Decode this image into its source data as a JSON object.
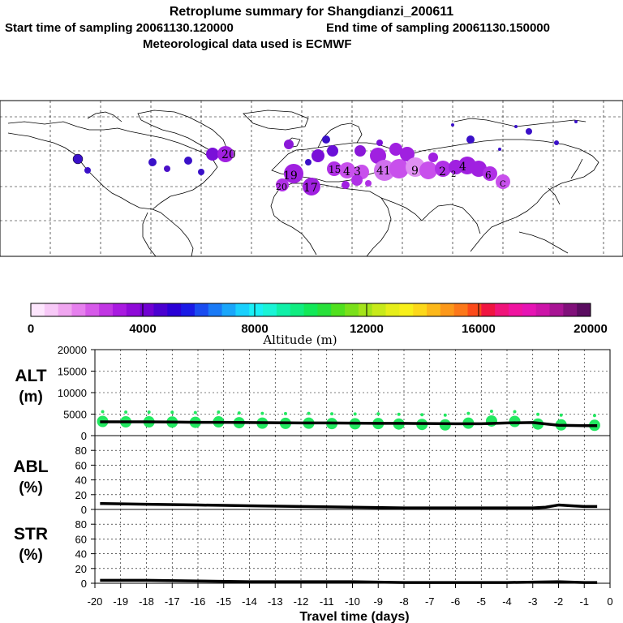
{
  "header": {
    "title": "Retroplume summary for Shangdianzi_200611",
    "start_label": "Start time of sampling 20061130.120000",
    "end_label": "End time of sampling 20061130.150000",
    "met_label": "Meteorological data used is ECMWF"
  },
  "colors": {
    "scale": [
      "#fde6fd",
      "#f7c9f7",
      "#f0a6f0",
      "#e680ee",
      "#d65ae9",
      "#c136e3",
      "#a91ae0",
      "#8f0ad8",
      "#7000d2",
      "#4a00d0",
      "#2a00d6",
      "#1a1ae6",
      "#1a4cf0",
      "#1a7af6",
      "#1aa6fa",
      "#1ad0fd",
      "#1af0f7",
      "#1af4d6",
      "#10f0a8",
      "#10ec80",
      "#12e858",
      "#28e03a",
      "#50e01e",
      "#7ae01a",
      "#a4e41a",
      "#c8ea1a",
      "#e6ee1a",
      "#f8f01a",
      "#fcd81a",
      "#fcb81a",
      "#fc981a",
      "#fc781a",
      "#fc4a1a",
      "#f01440",
      "#f0147a",
      "#f014a0",
      "#e614b4",
      "#cc14a8",
      "#a81494",
      "#80107a",
      "#5a0c60"
    ],
    "alt_marker": "#22e860",
    "line": "#000000",
    "map_point_primary": "#a020e0"
  },
  "map": {
    "labels": [
      {
        "text": "20",
        "lon": -68,
        "lat": 48
      },
      {
        "text": "19",
        "lon": 9,
        "lat": 37
      },
      {
        "text": "20",
        "lon": 8,
        "lat": 30
      },
      {
        "text": "17",
        "lon": 18,
        "lat": 29
      },
      {
        "text": "15",
        "lon": 27,
        "lat": 41
      },
      {
        "text": "4",
        "lon": 33,
        "lat": 40
      },
      {
        "text": "3",
        "lon": 37,
        "lat": 40
      },
      {
        "text": "41",
        "lon": 58,
        "lat": 40
      },
      {
        "text": "9",
        "lon": 72,
        "lat": 40
      },
      {
        "text": "2",
        "lon": 83,
        "lat": 40
      },
      {
        "text": "4",
        "lon": 101,
        "lat": 42
      },
      {
        "text": "2",
        "lon": 96,
        "lat": 38
      },
      {
        "text": "6",
        "lon": 113,
        "lat": 38
      },
      {
        "text": "C",
        "lon": 118,
        "lat": 30
      }
    ]
  },
  "colorbar": {
    "ticks": [
      "0",
      "4000",
      "8000",
      "12000",
      "16000",
      "20000"
    ],
    "label": "Altitude (m)",
    "min": 0,
    "max": 20000
  },
  "chart_data": [
    {
      "type": "line",
      "panel": "ALT",
      "ylabel_line1": "ALT",
      "ylabel_line2": "(m)",
      "ylim": [
        0,
        20000
      ],
      "yticks": [
        "0",
        "5000",
        "10000",
        "15000",
        "20000"
      ],
      "x": [
        -19.8,
        -19,
        -18,
        -17,
        -16,
        -15,
        -14,
        -13,
        -12,
        -11,
        -10,
        -9,
        -8,
        -7,
        -6,
        -5,
        -4,
        -3,
        -2,
        -1,
        -0.5
      ],
      "y": [
        3200,
        3200,
        3200,
        3150,
        3100,
        3100,
        3050,
        3000,
        2950,
        2950,
        2900,
        2850,
        2850,
        2800,
        2750,
        2750,
        2950,
        3050,
        2400,
        2300,
        2300
      ],
      "markers": {
        "x": [
          -19.7,
          -18.8,
          -17.9,
          -17.0,
          -16.1,
          -15.2,
          -14.4,
          -13.5,
          -12.6,
          -11.7,
          -10.8,
          -9.9,
          -9.0,
          -8.2,
          -7.3,
          -6.4,
          -5.5,
          -4.6,
          -3.7,
          -2.8,
          -1.9,
          -0.6
        ],
        "y": [
          3300,
          3200,
          3200,
          3150,
          3100,
          3200,
          3000,
          2900,
          2850,
          2900,
          2800,
          2750,
          2800,
          2700,
          2600,
          2500,
          2900,
          3400,
          3300,
          2700,
          2500,
          2400
        ]
      }
    },
    {
      "type": "line",
      "panel": "ABL",
      "ylabel_line1": "ABL",
      "ylabel_line2": "(%)",
      "ylim": [
        0,
        100
      ],
      "yticks": [
        "0",
        "20",
        "40",
        "60",
        "80"
      ],
      "x": [
        -19.8,
        -18,
        -16,
        -14,
        -12,
        -10,
        -8,
        -6,
        -4,
        -3,
        -2.5,
        -2,
        -1.5,
        -1,
        -0.5
      ],
      "y": [
        8,
        7,
        6,
        5,
        4,
        3,
        2,
        2,
        2,
        2,
        3,
        6,
        5,
        4,
        4
      ]
    },
    {
      "type": "line",
      "panel": "STR",
      "ylabel_line1": "STR",
      "ylabel_line2": "(%)",
      "ylim": [
        0,
        100
      ],
      "yticks": [
        "0",
        "20",
        "40",
        "60",
        "80"
      ],
      "x": [
        -19.8,
        -18,
        -16,
        -14,
        -12,
        -10,
        -8,
        -6,
        -4,
        -2,
        -1,
        -0.5
      ],
      "y": [
        4,
        4,
        3,
        2,
        2,
        2,
        1,
        1,
        1,
        2,
        1,
        1
      ]
    }
  ],
  "xaxis": {
    "ticks": [
      "-20",
      "-19",
      "-18",
      "-17",
      "-16",
      "-15",
      "-14",
      "-13",
      "-12",
      "-11",
      "-10",
      "-9",
      "-8",
      "-7",
      "-6",
      "-5",
      "-4",
      "-3",
      "-2",
      "-1",
      "0"
    ],
    "label": "Travel time (days)"
  }
}
